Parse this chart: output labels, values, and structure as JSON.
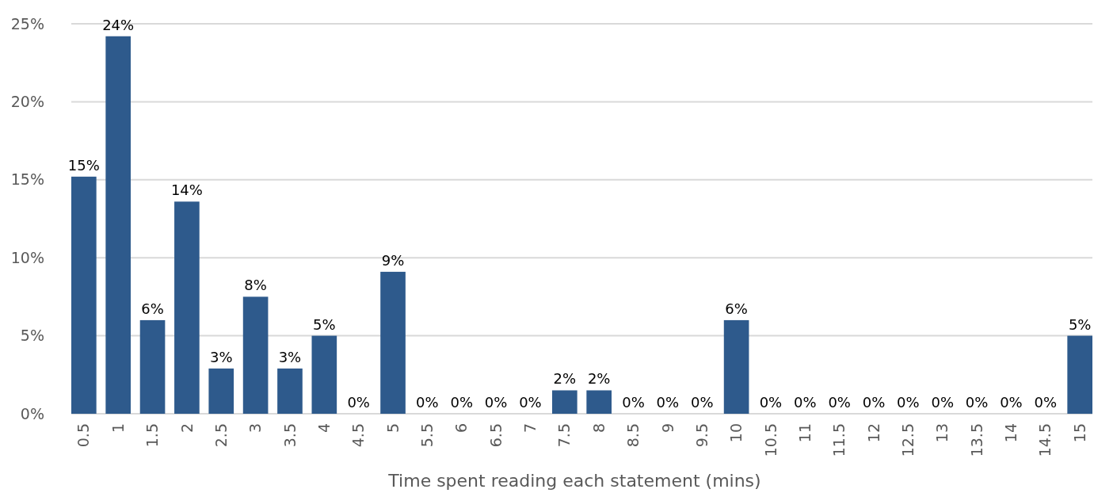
{
  "chart_data": {
    "type": "bar",
    "xlabel": "Time spent reading each statement (mins)",
    "categories": [
      "0.5",
      "1",
      "1.5",
      "2",
      "2.5",
      "3",
      "3.5",
      "4",
      "4.5",
      "5",
      "5.5",
      "6",
      "6.5",
      "7",
      "7.5",
      "8",
      "8.5",
      "9",
      "9.5",
      "10",
      "10.5",
      "11",
      "11.5",
      "12",
      "12.5",
      "13",
      "13.5",
      "14",
      "14.5",
      "15"
    ],
    "values": [
      15.2,
      24.2,
      6.0,
      13.6,
      2.9,
      7.5,
      2.9,
      5.0,
      0,
      9.1,
      0,
      0,
      0,
      0,
      1.5,
      1.5,
      0,
      0,
      0,
      6.0,
      0,
      0,
      0,
      0,
      0,
      0,
      0,
      0,
      0,
      5.0
    ],
    "value_labels": [
      "15%",
      "24%",
      "6%",
      "14%",
      "3%",
      "8%",
      "3%",
      "5%",
      "0%",
      "9%",
      "0%",
      "0%",
      "0%",
      "0%",
      "2%",
      "2%",
      "0%",
      "0%",
      "0%",
      "6%",
      "0%",
      "0%",
      "0%",
      "0%",
      "0%",
      "0%",
      "0%",
      "0%",
      "0%",
      "5%"
    ],
    "color": "#2e5a8c",
    "ylim": [
      0,
      25
    ],
    "yticks": [
      {
        "value": 0,
        "label": "0%"
      },
      {
        "value": 5,
        "label": "5%"
      },
      {
        "value": 10,
        "label": "10%"
      },
      {
        "value": 15,
        "label": "15%"
      },
      {
        "value": 20,
        "label": "20%"
      },
      {
        "value": 25,
        "label": "25%"
      }
    ],
    "grid": "y"
  }
}
